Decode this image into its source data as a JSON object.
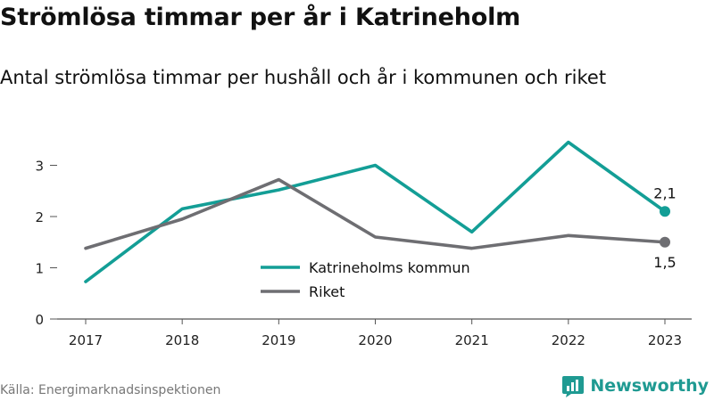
{
  "title": "Strömlösa timmar per år i Katrineholm",
  "subtitle": "Antal strömlösa timmar per hushåll och år i kommunen och riket",
  "source": "Källa: Energimarknadsinspektionen",
  "brand": "Newsworthy",
  "colors": {
    "kommun": "#139e96",
    "riket": "#6e6e72",
    "axis": "#555555",
    "grid_text": "#222222",
    "brand": "#1f9a92"
  },
  "chart_data": {
    "type": "line",
    "x": [
      "2017",
      "2018",
      "2019",
      "2020",
      "2021",
      "2022",
      "2023"
    ],
    "ylim": [
      0,
      3.6
    ],
    "yticks": [
      0,
      1,
      2,
      3
    ],
    "grid": false,
    "legend_position": "center-bottom",
    "series": [
      {
        "name": "Katrineholms kommun",
        "values": [
          0.73,
          2.15,
          2.52,
          3.0,
          1.7,
          3.45,
          2.1
        ],
        "end_label": "2,1",
        "color_key": "kommun"
      },
      {
        "name": "Riket",
        "values": [
          1.38,
          1.95,
          2.72,
          1.6,
          1.38,
          1.63,
          1.5
        ],
        "end_label": "1,5",
        "color_key": "riket"
      }
    ]
  }
}
